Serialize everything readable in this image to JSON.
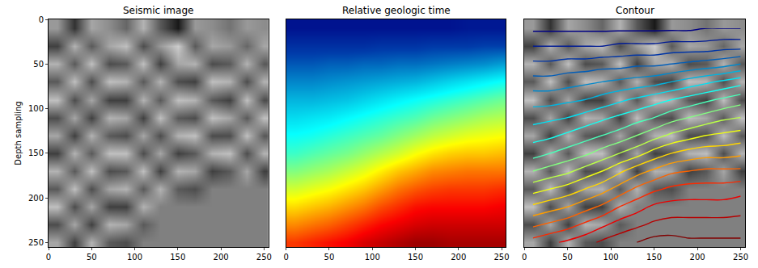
{
  "chart_data": [
    {
      "type": "heatmap",
      "title": "Seismic image",
      "y_label": "Depth sampling",
      "color": "gray",
      "x": [
        10,
        30,
        50,
        70,
        90,
        110,
        130,
        150,
        170,
        190,
        210,
        230,
        250
      ],
      "y": [
        10,
        30,
        50,
        70,
        90,
        110,
        130,
        150,
        170,
        190,
        210,
        230,
        250
      ],
      "z": [
        [
          0.2,
          -0.6,
          0.3,
          0.1,
          -0.2,
          0.4,
          -0.3,
          -0.8,
          0.2,
          0.1,
          -0.1,
          0.2,
          0.1
        ],
        [
          -0.5,
          0.4,
          -0.3,
          0.3,
          0.5,
          -0.4,
          0.2,
          0.6,
          -0.3,
          0.3,
          0.2,
          -0.2,
          0.3
        ],
        [
          0.4,
          -0.3,
          0.5,
          -0.4,
          -0.3,
          0.5,
          -0.5,
          0.3,
          0.4,
          -0.4,
          -0.3,
          0.4,
          -0.3
        ],
        [
          -0.3,
          0.5,
          -0.4,
          0.5,
          0.4,
          -0.3,
          0.4,
          -0.4,
          -0.5,
          0.5,
          0.4,
          -0.4,
          0.4
        ],
        [
          0.5,
          -0.4,
          0.3,
          -0.5,
          -0.5,
          0.4,
          -0.3,
          0.5,
          0.4,
          -0.3,
          -0.5,
          0.5,
          -0.4
        ],
        [
          -0.4,
          0.3,
          -0.5,
          0.4,
          0.3,
          -0.5,
          0.5,
          -0.3,
          -0.4,
          0.5,
          0.3,
          -0.3,
          0.5
        ],
        [
          0.3,
          -0.5,
          0.4,
          -0.3,
          -0.4,
          0.3,
          -0.4,
          0.4,
          0.5,
          -0.4,
          -0.4,
          0.5,
          -0.3
        ],
        [
          -0.5,
          0.4,
          -0.3,
          0.5,
          0.5,
          -0.4,
          0.3,
          -0.5,
          -0.3,
          0.4,
          0.5,
          -0.4,
          0.4
        ],
        [
          0.4,
          -0.3,
          0.5,
          -0.4,
          -0.3,
          0.5,
          -0.5,
          0.4,
          0.3,
          -0.5,
          -0.3,
          0.3,
          -0.5
        ],
        [
          -0.3,
          0.5,
          -0.4,
          0.3,
          0.4,
          -0.3,
          0.4,
          -0.3,
          -0.4,
          0,
          0,
          0,
          0
        ],
        [
          0.5,
          -0.4,
          0.3,
          -0.5,
          -0.5,
          0.4,
          0,
          0,
          0,
          0,
          0,
          0,
          0
        ],
        [
          -0.4,
          0.3,
          -0.5,
          0.4,
          0.3,
          -0.3,
          0,
          0,
          0,
          0,
          0,
          0,
          0
        ],
        [
          0.3,
          -0.5,
          0.4,
          -0.3,
          -0.4,
          0,
          0,
          0,
          0,
          0,
          0,
          0,
          0
        ]
      ],
      "zlim": [
        -1,
        1
      ],
      "xlim": [
        0,
        255
      ],
      "xticks": [
        0,
        50,
        100,
        150,
        200,
        250
      ],
      "ylim": [
        255,
        0
      ],
      "yticks": [
        0,
        50,
        100,
        150,
        200,
        250
      ]
    },
    {
      "type": "heatmap",
      "title": "Relative geologic time",
      "color": "jet",
      "tick_labels": "x",
      "x": [
        10,
        30,
        50,
        70,
        90,
        110,
        130,
        150,
        170,
        190,
        210,
        230,
        250
      ],
      "y": [
        10,
        30,
        50,
        70,
        90,
        110,
        130,
        150,
        170,
        190,
        210,
        230,
        250
      ],
      "z": [
        [
          0.04,
          0.04,
          0.04,
          0.04,
          0.04,
          0.04,
          0.04,
          0.04,
          0.04,
          0.04,
          0.05,
          0.05,
          0.05
        ],
        [
          0.1,
          0.1,
          0.1,
          0.1,
          0.1,
          0.11,
          0.11,
          0.11,
          0.12,
          0.12,
          0.12,
          0.13,
          0.13
        ],
        [
          0.16,
          0.16,
          0.17,
          0.17,
          0.18,
          0.18,
          0.19,
          0.19,
          0.2,
          0.21,
          0.22,
          0.23,
          0.25
        ],
        [
          0.22,
          0.22,
          0.23,
          0.24,
          0.25,
          0.26,
          0.27,
          0.28,
          0.3,
          0.32,
          0.34,
          0.36,
          0.38
        ],
        [
          0.28,
          0.28,
          0.29,
          0.3,
          0.32,
          0.34,
          0.36,
          0.38,
          0.4,
          0.42,
          0.44,
          0.46,
          0.48
        ],
        [
          0.33,
          0.34,
          0.35,
          0.37,
          0.39,
          0.41,
          0.43,
          0.45,
          0.48,
          0.5,
          0.52,
          0.54,
          0.55
        ],
        [
          0.38,
          0.39,
          0.41,
          0.43,
          0.45,
          0.47,
          0.5,
          0.53,
          0.56,
          0.58,
          0.6,
          0.61,
          0.62
        ],
        [
          0.43,
          0.45,
          0.47,
          0.49,
          0.52,
          0.55,
          0.58,
          0.62,
          0.65,
          0.67,
          0.68,
          0.68,
          0.69
        ],
        [
          0.5,
          0.52,
          0.54,
          0.57,
          0.6,
          0.64,
          0.68,
          0.71,
          0.74,
          0.75,
          0.76,
          0.76,
          0.76
        ],
        [
          0.58,
          0.6,
          0.62,
          0.65,
          0.68,
          0.72,
          0.76,
          0.79,
          0.81,
          0.82,
          0.82,
          0.82,
          0.83
        ],
        [
          0.66,
          0.68,
          0.7,
          0.73,
          0.76,
          0.8,
          0.83,
          0.86,
          0.87,
          0.87,
          0.87,
          0.87,
          0.88
        ],
        [
          0.74,
          0.76,
          0.78,
          0.81,
          0.84,
          0.87,
          0.89,
          0.91,
          0.92,
          0.92,
          0.92,
          0.92,
          0.92
        ],
        [
          0.82,
          0.84,
          0.86,
          0.88,
          0.91,
          0.93,
          0.95,
          0.97,
          0.97,
          0.96,
          0.96,
          0.96,
          0.96
        ]
      ],
      "zlim": [
        0,
        1
      ],
      "xlim": [
        0,
        255
      ],
      "xticks": [
        0,
        50,
        100,
        150,
        200,
        250
      ],
      "ylim": [
        255,
        0
      ]
    },
    {
      "type": "contour",
      "title": "Contour",
      "color": "jet",
      "background_color": "gray",
      "tick_labels": "x",
      "x": [
        10,
        30,
        50,
        70,
        90,
        110,
        130,
        150,
        170,
        190,
        210,
        230,
        250
      ],
      "y": [
        10,
        30,
        50,
        70,
        90,
        110,
        130,
        150,
        170,
        190,
        210,
        230,
        250
      ],
      "z": [
        [
          0.04,
          0.04,
          0.04,
          0.04,
          0.04,
          0.04,
          0.04,
          0.04,
          0.04,
          0.04,
          0.05,
          0.05,
          0.05
        ],
        [
          0.1,
          0.1,
          0.1,
          0.1,
          0.1,
          0.11,
          0.11,
          0.11,
          0.12,
          0.12,
          0.12,
          0.13,
          0.13
        ],
        [
          0.16,
          0.16,
          0.17,
          0.17,
          0.18,
          0.18,
          0.19,
          0.19,
          0.2,
          0.21,
          0.22,
          0.23,
          0.25
        ],
        [
          0.22,
          0.22,
          0.23,
          0.24,
          0.25,
          0.26,
          0.27,
          0.28,
          0.3,
          0.32,
          0.34,
          0.36,
          0.38
        ],
        [
          0.28,
          0.28,
          0.29,
          0.3,
          0.32,
          0.34,
          0.36,
          0.38,
          0.4,
          0.42,
          0.44,
          0.46,
          0.48
        ],
        [
          0.33,
          0.34,
          0.35,
          0.37,
          0.39,
          0.41,
          0.43,
          0.45,
          0.48,
          0.5,
          0.52,
          0.54,
          0.55
        ],
        [
          0.38,
          0.39,
          0.41,
          0.43,
          0.45,
          0.47,
          0.5,
          0.53,
          0.56,
          0.58,
          0.6,
          0.61,
          0.62
        ],
        [
          0.43,
          0.45,
          0.47,
          0.49,
          0.52,
          0.55,
          0.58,
          0.62,
          0.65,
          0.67,
          0.68,
          0.68,
          0.69
        ],
        [
          0.5,
          0.52,
          0.54,
          0.57,
          0.6,
          0.64,
          0.68,
          0.71,
          0.74,
          0.75,
          0.76,
          0.76,
          0.76
        ],
        [
          0.58,
          0.6,
          0.62,
          0.65,
          0.68,
          0.72,
          0.76,
          0.79,
          0.81,
          0.82,
          0.82,
          0.82,
          0.83
        ],
        [
          0.66,
          0.68,
          0.7,
          0.73,
          0.76,
          0.8,
          0.83,
          0.86,
          0.87,
          0.87,
          0.87,
          0.87,
          0.88
        ],
        [
          0.74,
          0.76,
          0.78,
          0.81,
          0.84,
          0.87,
          0.89,
          0.91,
          0.92,
          0.92,
          0.92,
          0.92,
          0.92
        ],
        [
          0.82,
          0.84,
          0.86,
          0.88,
          0.91,
          0.93,
          0.95,
          0.97,
          0.97,
          0.96,
          0.96,
          0.96,
          0.96
        ]
      ],
      "zlim": [
        0,
        1
      ],
      "levels": [
        0.05,
        0.1,
        0.15,
        0.2,
        0.25,
        0.3,
        0.35,
        0.4,
        0.45,
        0.5,
        0.55,
        0.6,
        0.65,
        0.7,
        0.75,
        0.8,
        0.85,
        0.9,
        0.95
      ],
      "background_z": [
        [
          0.2,
          -0.6,
          0.3,
          0.1,
          -0.2,
          0.4,
          -0.3,
          -0.8,
          0.2,
          0.1,
          -0.1,
          0.2,
          0.1
        ],
        [
          -0.5,
          0.4,
          -0.3,
          0.3,
          0.5,
          -0.4,
          0.2,
          0.6,
          -0.3,
          0.3,
          0.2,
          -0.2,
          0.3
        ],
        [
          0.4,
          -0.3,
          0.5,
          -0.4,
          -0.3,
          0.5,
          -0.5,
          0.3,
          0.4,
          -0.4,
          -0.3,
          0.4,
          -0.3
        ],
        [
          -0.3,
          0.5,
          -0.4,
          0.5,
          0.4,
          -0.3,
          0.4,
          -0.4,
          -0.5,
          0.5,
          0.4,
          -0.4,
          0.4
        ],
        [
          0.5,
          -0.4,
          0.3,
          -0.5,
          -0.5,
          0.4,
          -0.3,
          0.5,
          0.4,
          -0.3,
          -0.5,
          0.5,
          -0.4
        ],
        [
          -0.4,
          0.3,
          -0.5,
          0.4,
          0.3,
          -0.5,
          0.5,
          -0.3,
          -0.4,
          0.5,
          0.3,
          -0.3,
          0.5
        ],
        [
          0.3,
          -0.5,
          0.4,
          -0.3,
          -0.4,
          0.3,
          -0.4,
          0.4,
          0.5,
          -0.4,
          -0.4,
          0.5,
          -0.3
        ],
        [
          -0.5,
          0.4,
          -0.3,
          0.5,
          0.5,
          -0.4,
          0.3,
          -0.5,
          -0.3,
          0.4,
          0.5,
          -0.4,
          0.4
        ],
        [
          0.4,
          -0.3,
          0.5,
          -0.4,
          -0.3,
          0.5,
          -0.5,
          0.4,
          0.3,
          -0.5,
          -0.3,
          0.3,
          -0.5
        ],
        [
          -0.3,
          0.5,
          -0.4,
          0.3,
          0.4,
          -0.3,
          0.4,
          -0.3,
          -0.4,
          0,
          0,
          0,
          0
        ],
        [
          0.5,
          -0.4,
          0.3,
          -0.5,
          -0.5,
          0.4,
          0,
          0,
          0,
          0,
          0,
          0,
          0
        ],
        [
          -0.4,
          0.3,
          -0.5,
          0.4,
          0.3,
          -0.3,
          0,
          0,
          0,
          0,
          0,
          0,
          0
        ],
        [
          0.3,
          -0.5,
          0.4,
          -0.3,
          -0.4,
          0,
          0,
          0,
          0,
          0,
          0,
          0,
          0
        ]
      ],
      "background_zlim": [
        -1,
        1
      ],
      "xlim": [
        0,
        255
      ],
      "xticks": [
        0,
        50,
        100,
        150,
        200,
        250
      ],
      "ylim": [
        255,
        0
      ]
    }
  ]
}
